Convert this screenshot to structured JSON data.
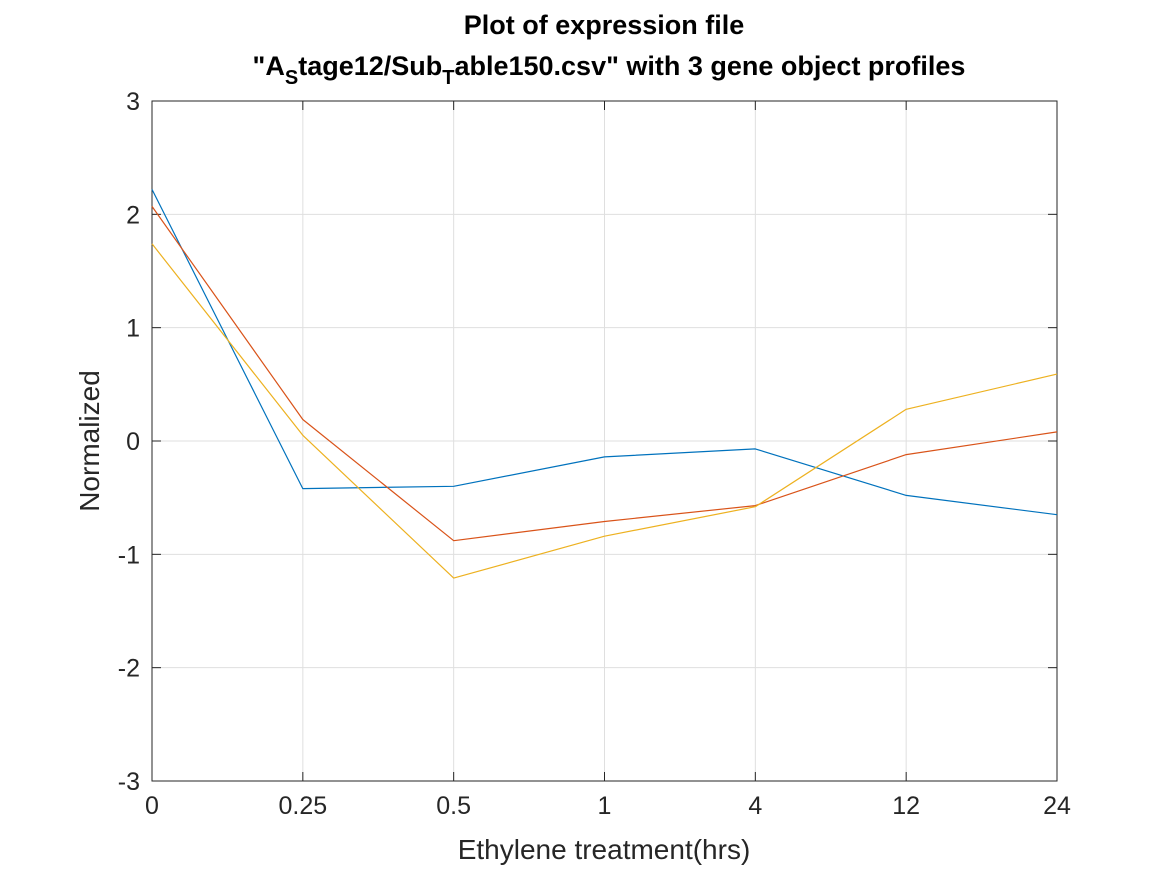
{
  "chart_data": {
    "type": "line",
    "title_line1": "Plot of expression file",
    "title_line2": {
      "part1": "\"A",
      "sub1": "S",
      "part2": "tage12/Sub",
      "sub2": "T",
      "part3": "able150.csv\" with 3 gene object profiles"
    },
    "xlabel": "Ethylene treatment(hrs)",
    "ylabel": "Normalized",
    "categories": [
      "0",
      "0.25",
      "0.5",
      "1",
      "4",
      "12",
      "24"
    ],
    "ylim": [
      -3,
      3
    ],
    "yticks": [
      "-3",
      "-2",
      "-1",
      "0",
      "1",
      "2",
      "3"
    ],
    "grid": true,
    "series": [
      {
        "color": "#0072BD",
        "values": [
          2.22,
          -0.42,
          -0.4,
          -0.14,
          -0.07,
          -0.48,
          -0.65
        ]
      },
      {
        "color": "#D95319",
        "values": [
          2.07,
          0.19,
          -0.88,
          -0.71,
          -0.57,
          -0.12,
          0.08
        ]
      },
      {
        "color": "#EDB120",
        "values": [
          1.74,
          0.05,
          -1.21,
          -0.84,
          -0.58,
          0.28,
          0.59
        ]
      }
    ]
  }
}
